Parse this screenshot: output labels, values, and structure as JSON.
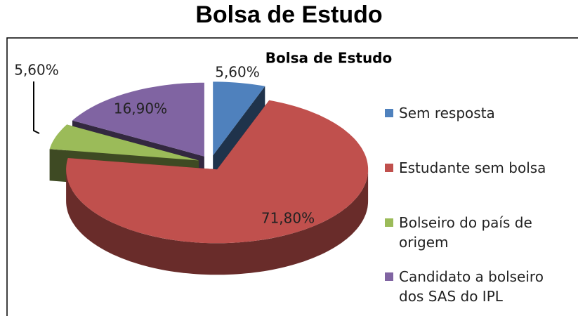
{
  "header": {
    "title": "Bolsa de Estudo"
  },
  "chart_data": {
    "type": "pie",
    "title": "Bolsa de Estudo",
    "categories": [
      "Sem resposta",
      "Estudante sem bolsa",
      "Bolseiro do país de origem",
      "Candidato a bolseiro dos SAS do IPL"
    ],
    "values": [
      5.6,
      71.8,
      5.6,
      16.9
    ],
    "value_labels": [
      "5,60%",
      "71,80%",
      "5,60%",
      "16,90%"
    ],
    "colors": [
      "#4f81bd",
      "#c0504d",
      "#9bbb59",
      "#8064a2"
    ],
    "legend": "right"
  }
}
